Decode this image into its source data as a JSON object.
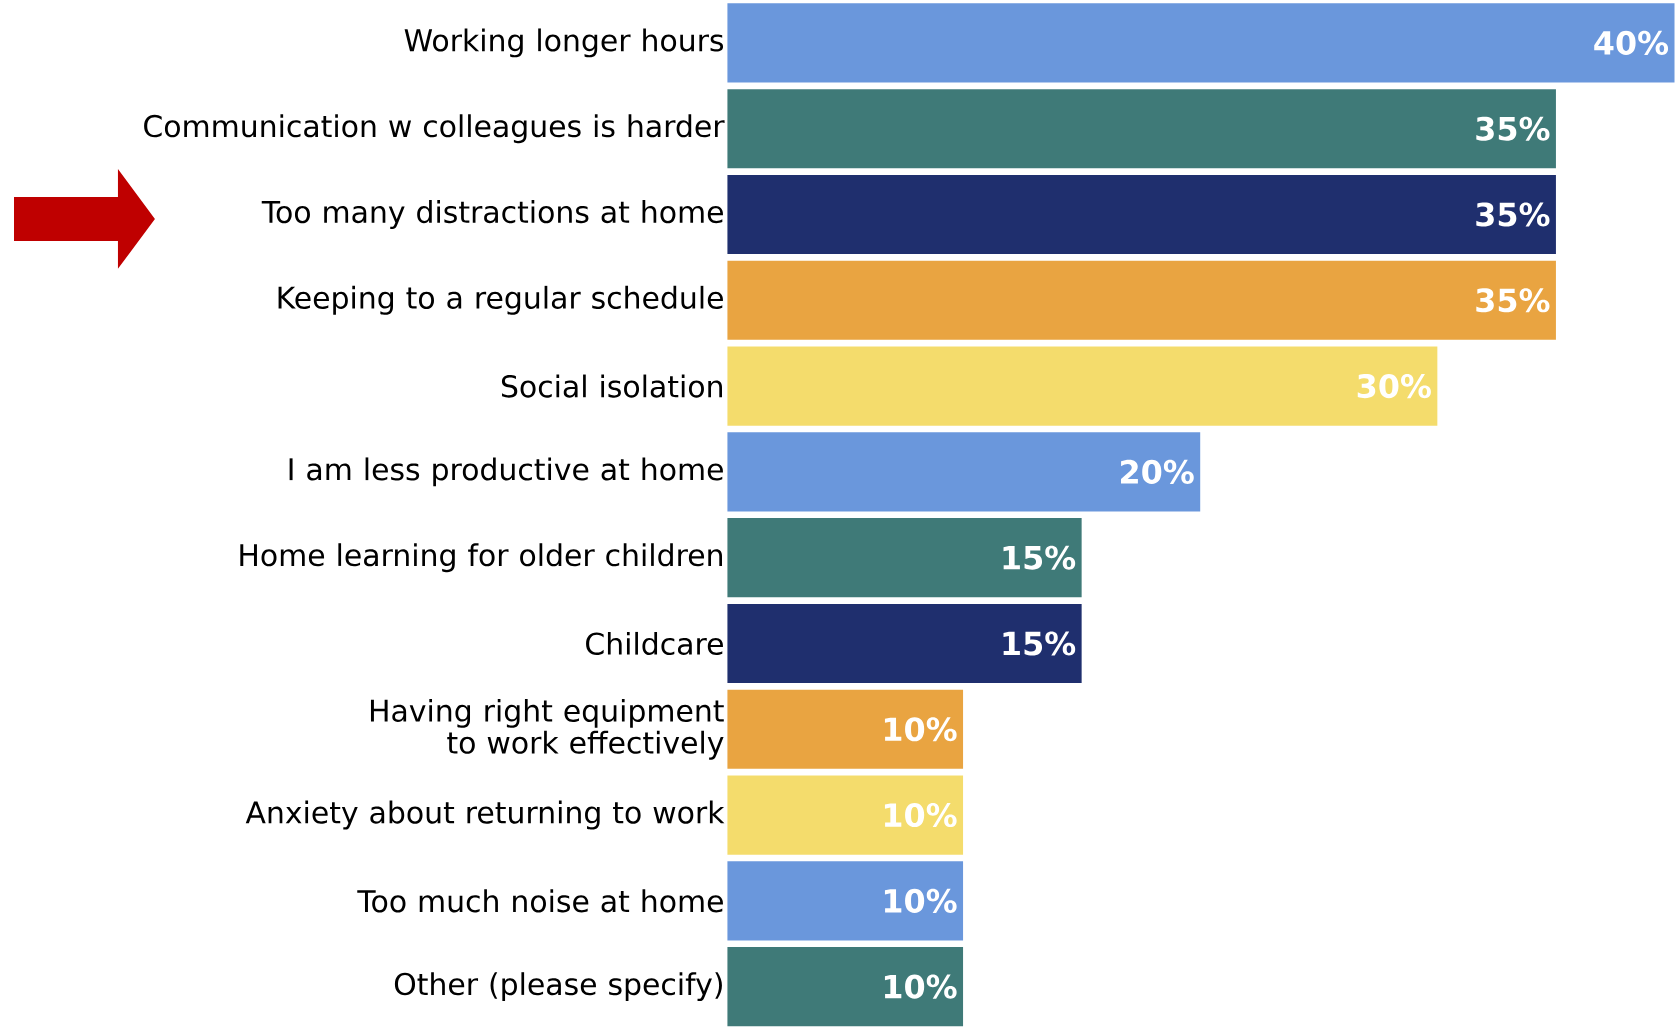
{
  "chart_data": {
    "type": "bar",
    "orientation": "horizontal",
    "categories": [
      "Working longer hours",
      "Communication w colleagues is harder",
      "Too many distractions at home",
      "Keeping to a regular schedule",
      "Social isolation",
      "I am less productive at home",
      "Home learning for older children",
      "Childcare",
      "Having right equipment to work effectively",
      "Anxiety about returning to work",
      "Too much noise at home",
      "Other (please specify)"
    ],
    "values": [
      40,
      35,
      35,
      35,
      30,
      20,
      15,
      15,
      10,
      10,
      10,
      10
    ],
    "value_labels": [
      "40%",
      "35%",
      "35%",
      "35%",
      "30%",
      "20%",
      "15%",
      "15%",
      "10%",
      "10%",
      "10%",
      "10%"
    ],
    "colors": [
      "#6a97dc",
      "#3f7a78",
      "#1f2f6e",
      "#e9a441",
      "#f4dc6c",
      "#6a97dc",
      "#3f7a78",
      "#1f2f6e",
      "#e9a441",
      "#f4dc6c",
      "#6a97dc",
      "#3f7a78"
    ]
  }
}
